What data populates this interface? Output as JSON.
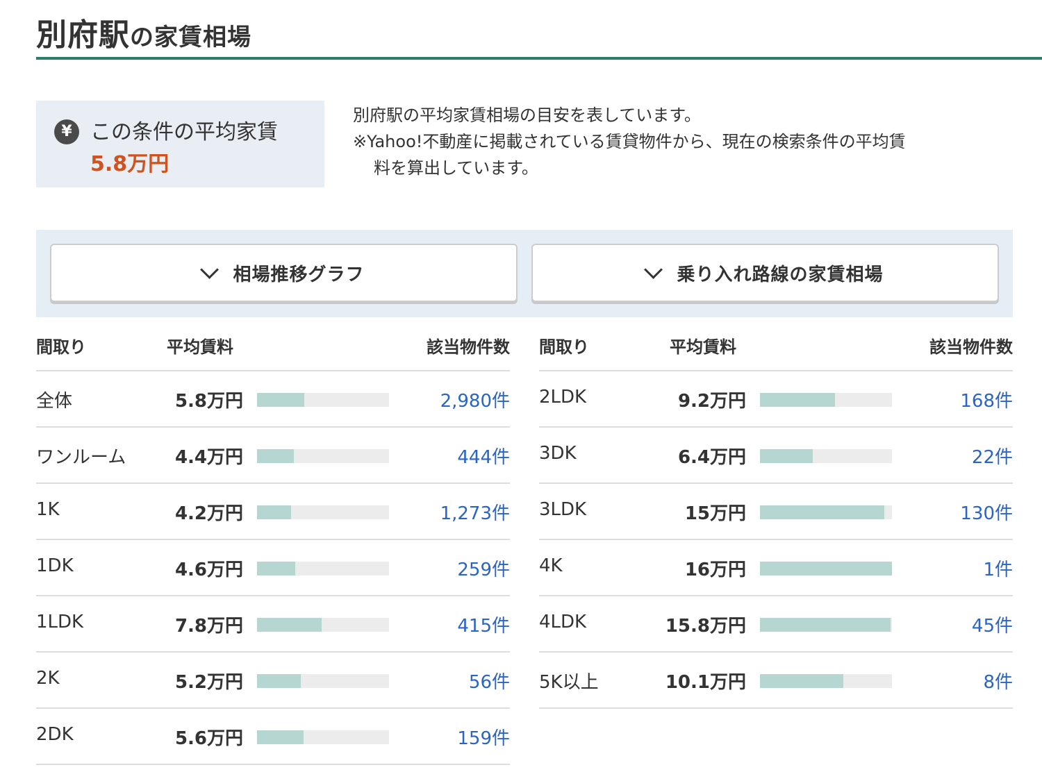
{
  "header": {
    "title_main": "別府駅",
    "title_sub": "の家賃相場"
  },
  "average": {
    "icon": "yen-icon",
    "icon_glyph": "¥",
    "label": "この条件の平均家賃",
    "value": "5.8万円"
  },
  "description": {
    "line1": "別府駅の平均家賃相場の目安を表しています。",
    "line2": "※Yahoo!不動産に掲載されている賃貸物件から、現在の検索条件の平均賃",
    "line3": "料を算出しています。"
  },
  "toggles": {
    "trend_label": "相場推移グラフ",
    "lines_label": "乗り入れ路線の家賃相場"
  },
  "table_headers": {
    "layout": "間取り",
    "rent": "平均賃料",
    "count": "該当物件数"
  },
  "colors": {
    "accent_green": "#2e7d6b",
    "price_orange": "#d0521e",
    "link_blue": "#2a64c4",
    "bar_fill": "#b6d6d2",
    "bar_track": "#ececec"
  },
  "rows_left": [
    {
      "layout": "全体",
      "rent": "5.8万円",
      "bar": 0.36,
      "count": "2,980件"
    },
    {
      "layout": "ワンルーム",
      "rent": "4.4万円",
      "bar": 0.28,
      "count": "444件"
    },
    {
      "layout": "1K",
      "rent": "4.2万円",
      "bar": 0.26,
      "count": "1,273件"
    },
    {
      "layout": "1DK",
      "rent": "4.6万円",
      "bar": 0.29,
      "count": "259件"
    },
    {
      "layout": "1LDK",
      "rent": "7.8万円",
      "bar": 0.49,
      "count": "415件"
    },
    {
      "layout": "2K",
      "rent": "5.2万円",
      "bar": 0.33,
      "count": "56件"
    },
    {
      "layout": "2DK",
      "rent": "5.6万円",
      "bar": 0.35,
      "count": "159件"
    }
  ],
  "rows_right": [
    {
      "layout": "2LDK",
      "rent": "9.2万円",
      "bar": 0.57,
      "count": "168件"
    },
    {
      "layout": "3DK",
      "rent": "6.4万円",
      "bar": 0.4,
      "count": "22件"
    },
    {
      "layout": "3LDK",
      "rent": "15万円",
      "bar": 0.94,
      "count": "130件"
    },
    {
      "layout": "4K",
      "rent": "16万円",
      "bar": 1.0,
      "count": "1件"
    },
    {
      "layout": "4LDK",
      "rent": "15.8万円",
      "bar": 0.99,
      "count": "45件"
    },
    {
      "layout": "5K以上",
      "rent": "10.1万円",
      "bar": 0.63,
      "count": "8件"
    }
  ]
}
